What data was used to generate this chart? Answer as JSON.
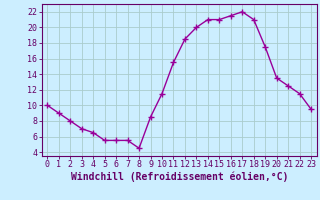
{
  "x": [
    0,
    1,
    2,
    3,
    4,
    5,
    6,
    7,
    8,
    9,
    10,
    11,
    12,
    13,
    14,
    15,
    16,
    17,
    18,
    19,
    20,
    21,
    22,
    23
  ],
  "y": [
    10,
    9,
    8,
    7,
    6.5,
    5.5,
    5.5,
    5.5,
    4.5,
    8.5,
    11.5,
    15.5,
    18.5,
    20,
    21,
    21,
    21.5,
    22,
    21,
    17.5,
    13.5,
    12.5,
    11.5,
    9.5
  ],
  "line_color": "#990099",
  "marker": "+",
  "markersize": 4,
  "markeredgewidth": 1.0,
  "linewidth": 1.0,
  "bg_color": "#cceeff",
  "grid_color": "#aacccc",
  "axis_color": "#660066",
  "tick_color": "#660066",
  "xlabel": "Windchill (Refroidissement éolien,°C)",
  "xlabel_fontsize": 7,
  "xlim": [
    -0.5,
    23.5
  ],
  "ylim": [
    3.5,
    23
  ],
  "xticks": [
    0,
    1,
    2,
    3,
    4,
    5,
    6,
    7,
    8,
    9,
    10,
    11,
    12,
    13,
    14,
    15,
    16,
    17,
    18,
    19,
    20,
    21,
    22,
    23
  ],
  "yticks": [
    4,
    6,
    8,
    10,
    12,
    14,
    16,
    18,
    20,
    22
  ],
  "tick_fontsize": 6
}
